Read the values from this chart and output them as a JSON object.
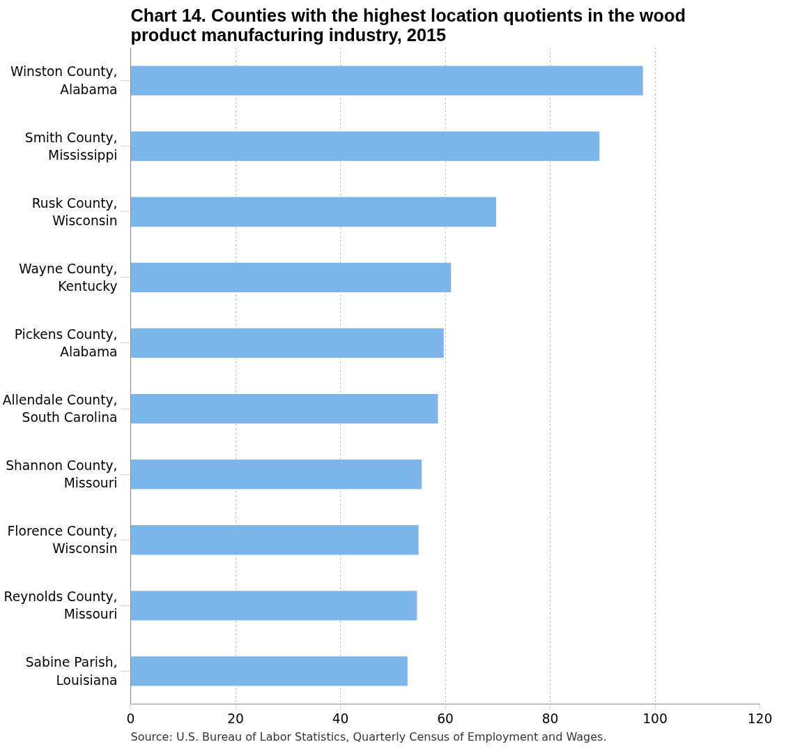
{
  "chart_data": {
    "type": "bar",
    "orientation": "horizontal",
    "title": "Chart 14. Counties with the highest location quotients in the wood product manufacturing industry, 2015",
    "categories": [
      "Winston County, Alabama",
      "Smith County, Mississippi",
      "Rusk County, Wisconsin",
      "Wayne County, Kentucky",
      "Pickens County, Alabama",
      "Allendale County, South Carolina",
      "Shannon County, Missouri",
      "Florence County, Wisconsin",
      "Reynolds County, Missouri",
      "Sabine Parish, Louisiana"
    ],
    "values": [
      97.7,
      89.4,
      69.7,
      61.1,
      59.7,
      58.6,
      55.5,
      54.9,
      54.6,
      52.8
    ],
    "color": "#7cb5ec",
    "xlim": [
      0,
      120
    ],
    "xticks": [
      0,
      20,
      40,
      60,
      80,
      100,
      120
    ],
    "grid": "x",
    "annotations": [
      "Source: U.S. Bureau of Labor Statistics, Quarterly Census of Employment and Wages."
    ]
  }
}
